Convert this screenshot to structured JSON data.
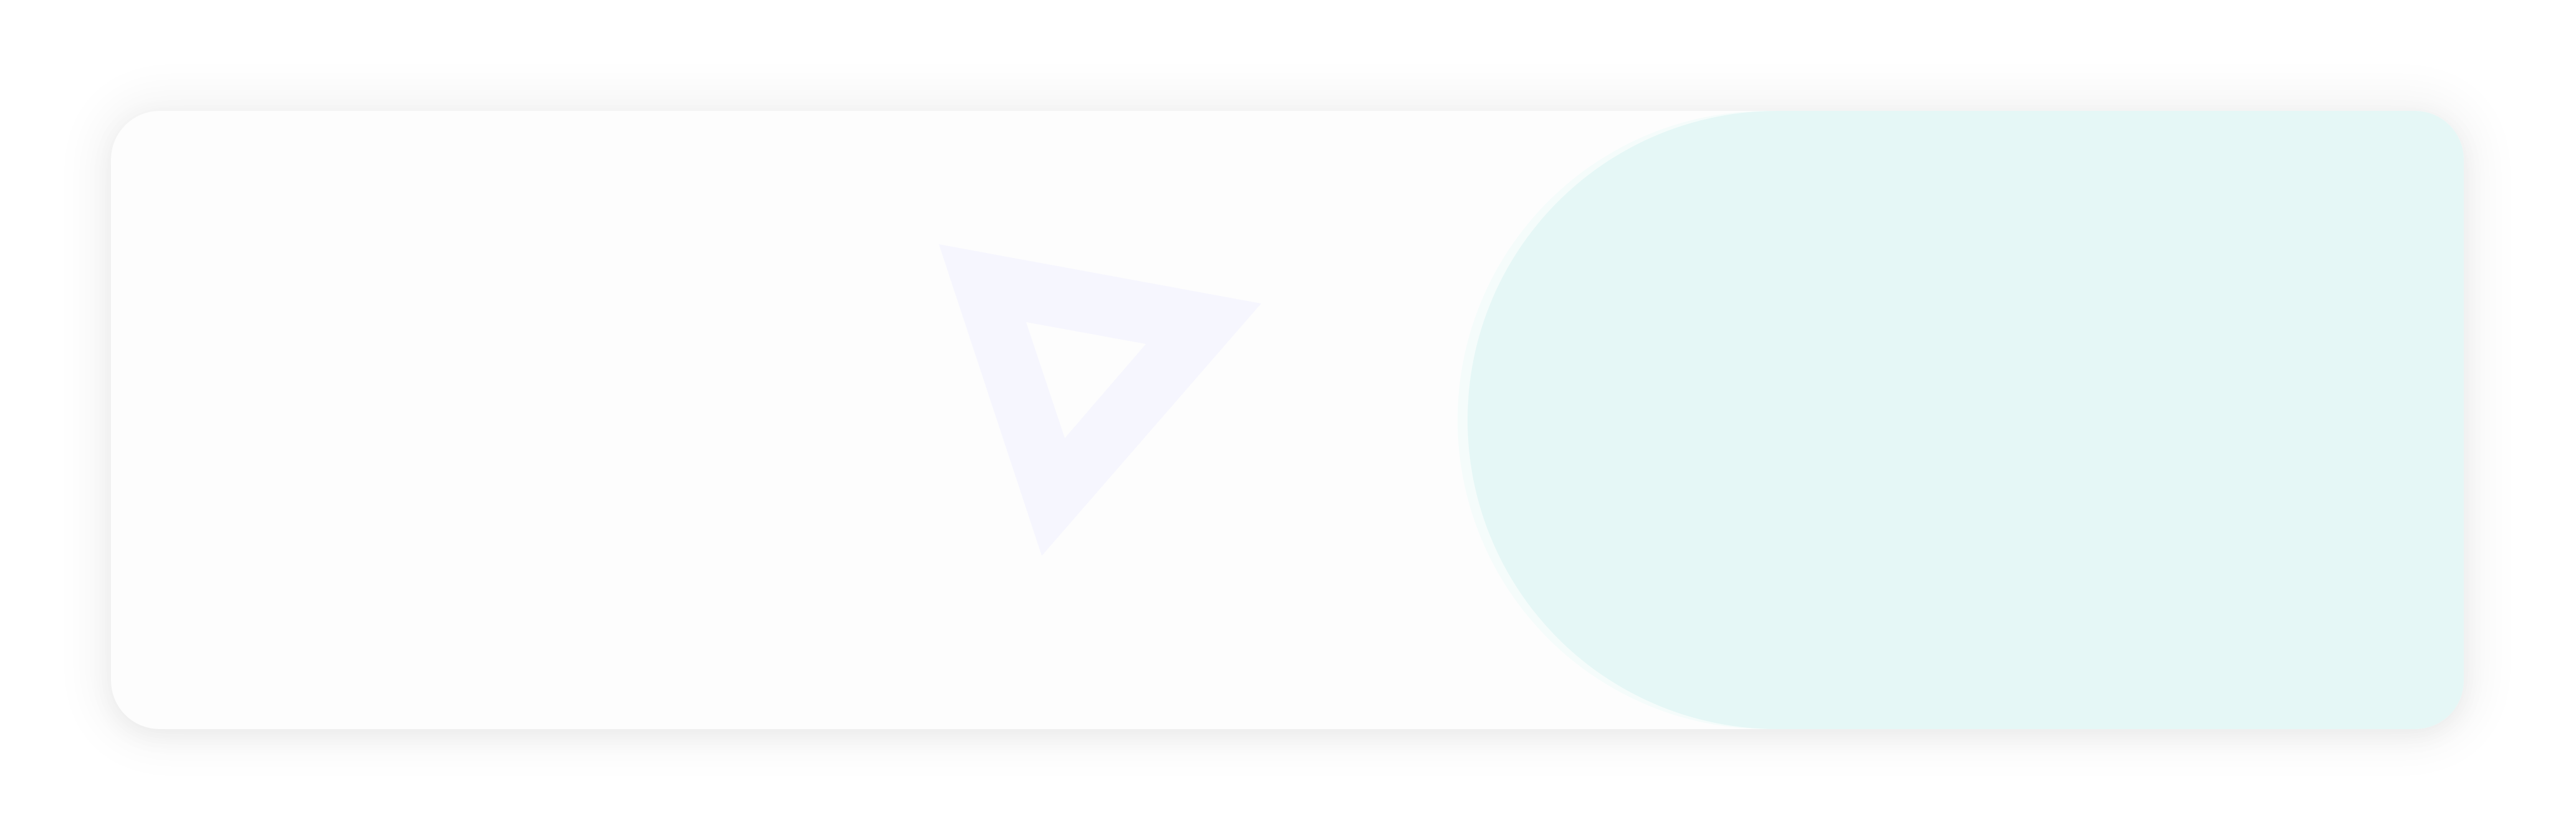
{
  "colors": {
    "card_background": "#fdfdfd",
    "accent_panel": "#e5f7f6",
    "accent_halo": "#f5fcfb",
    "triangle_icon": "#f6f6fe"
  },
  "icons": {
    "decorative_triangle": "triangle-outline-icon"
  }
}
